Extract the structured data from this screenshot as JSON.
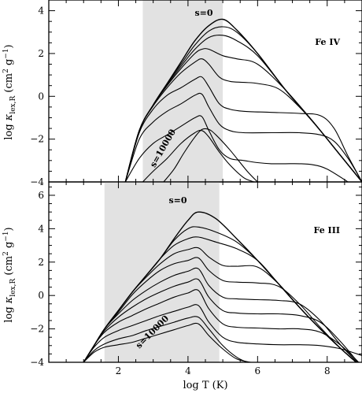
{
  "figure": {
    "xlabel": "log T (K)",
    "shade_color": "#e2e2e2",
    "line_color": "#000000"
  },
  "chart_data": [
    {
      "type": "line",
      "panel_label": "Fe IV",
      "ylabel": "log κ_lex,R (cm² g⁻¹)",
      "xlabel": "",
      "xlim": [
        0,
        9
      ],
      "ylim": [
        -4,
        4.5
      ],
      "x_ticks": [
        2,
        4,
        6,
        8
      ],
      "y_ticks": [
        -4,
        -2,
        0,
        2,
        4
      ],
      "y_tick_labels": [
        "−4",
        "−2",
        "0",
        "2",
        "4"
      ],
      "x_tick_labels_shown": false,
      "shaded_x_range": [
        2.7,
        5.0
      ],
      "curve_labels": {
        "top": "s=0",
        "bottom": "s=10000"
      },
      "series": [
        {
          "x": [
            2.2,
            2.6,
            3.0,
            3.4,
            3.8,
            4.2,
            4.6,
            5.0,
            5.4,
            6.0,
            6.8,
            7.6,
            8.4,
            9.0
          ],
          "y": [
            -4.0,
            -1.6,
            -0.4,
            0.6,
            1.6,
            2.6,
            3.3,
            3.6,
            3.1,
            2.0,
            0.3,
            -1.2,
            -2.8,
            -4.0
          ]
        },
        {
          "x": [
            2.2,
            2.6,
            3.0,
            3.4,
            3.8,
            4.2,
            4.6,
            5.0,
            5.4,
            6.0,
            6.8,
            7.6,
            8.4,
            9.0
          ],
          "y": [
            -4.0,
            -1.6,
            -0.4,
            0.6,
            1.5,
            2.4,
            3.05,
            3.25,
            3.0,
            2.0,
            0.3,
            -1.2,
            -2.8,
            -4.0
          ]
        },
        {
          "x": [
            2.2,
            2.6,
            3.0,
            3.4,
            3.8,
            4.2,
            4.6,
            5.0,
            5.4,
            6.0,
            6.8,
            7.6,
            8.4,
            9.0
          ],
          "y": [
            -4.0,
            -1.6,
            -0.4,
            0.55,
            1.4,
            2.2,
            2.75,
            2.85,
            2.6,
            1.9,
            0.3,
            -1.2,
            -2.8,
            -4.0
          ]
        },
        {
          "x": [
            2.2,
            2.6,
            3.0,
            3.4,
            3.8,
            4.2,
            4.4,
            4.6,
            5.0,
            5.4,
            6.0,
            6.8,
            7.6,
            8.4,
            9.0
          ],
          "y": [
            -4.0,
            -1.6,
            -0.4,
            0.5,
            1.3,
            2.0,
            2.2,
            2.2,
            1.9,
            1.75,
            1.5,
            0.3,
            -1.2,
            -2.8,
            -4.0
          ]
        },
        {
          "x": [
            2.2,
            2.6,
            3.0,
            3.4,
            3.8,
            4.2,
            4.4,
            4.6,
            4.9,
            5.2,
            5.6,
            6.0,
            6.6,
            7.2,
            7.8,
            8.4,
            9.0
          ],
          "y": [
            -4.0,
            -1.6,
            -0.45,
            0.4,
            1.1,
            1.6,
            1.75,
            1.5,
            0.9,
            0.7,
            0.65,
            0.6,
            0.35,
            -0.5,
            -1.6,
            -2.8,
            -4.0
          ]
        },
        {
          "x": [
            2.2,
            2.6,
            3.0,
            3.4,
            3.8,
            4.2,
            4.4,
            4.6,
            4.9,
            5.2,
            5.6,
            6.4,
            7.2,
            7.8,
            8.2,
            8.6,
            9.0
          ],
          "y": [
            -4.0,
            -1.7,
            -0.6,
            0.05,
            0.4,
            0.8,
            0.9,
            0.45,
            -0.35,
            -0.6,
            -0.7,
            -0.75,
            -0.8,
            -0.9,
            -1.5,
            -2.8,
            -4.0
          ]
        },
        {
          "x": [
            2.2,
            2.6,
            3.0,
            3.4,
            3.8,
            4.2,
            4.4,
            4.6,
            4.9,
            5.2,
            5.6,
            6.4,
            7.2,
            7.8,
            8.2,
            8.6,
            9.0
          ],
          "y": [
            -4.0,
            -2.0,
            -1.2,
            -0.7,
            -0.35,
            0.05,
            0.1,
            -0.5,
            -1.3,
            -1.6,
            -1.7,
            -1.7,
            -1.7,
            -1.8,
            -2.1,
            -2.9,
            -4.0
          ]
        },
        {
          "x": [
            2.2,
            2.6,
            3.0,
            3.4,
            3.8,
            4.2,
            4.4,
            4.6,
            4.9,
            5.2,
            5.6,
            6.0,
            6.4,
            6.8,
            7.2,
            7.6,
            8.0,
            8.6
          ],
          "y": [
            -4.0,
            -2.9,
            -2.2,
            -1.8,
            -1.4,
            -1.0,
            -0.95,
            -1.6,
            -2.5,
            -2.9,
            -3.0,
            -3.1,
            -3.15,
            -3.15,
            -3.15,
            -3.2,
            -3.4,
            -4.0
          ]
        },
        {
          "x": [
            2.7,
            3.0,
            3.4,
            3.8,
            4.2,
            4.4,
            4.6,
            4.9,
            5.2,
            5.6,
            5.9
          ],
          "y": [
            -4.0,
            -3.5,
            -2.9,
            -2.2,
            -1.7,
            -1.6,
            -1.9,
            -2.6,
            -3.2,
            -3.8,
            -4.0
          ]
        },
        {
          "x": [
            3.3,
            3.6,
            3.9,
            4.2,
            4.4,
            4.6,
            4.8,
            5.2,
            5.7,
            6.0
          ],
          "y": [
            -4.0,
            -3.4,
            -2.6,
            -1.9,
            -1.55,
            -1.55,
            -1.8,
            -2.5,
            -3.5,
            -4.0
          ]
        }
      ]
    },
    {
      "type": "line",
      "panel_label": "Fe III",
      "ylabel": "log κ_lex,R (cm² g⁻¹)",
      "xlabel": "log T (K)",
      "xlim": [
        0,
        9
      ],
      "ylim": [
        -4,
        6.8
      ],
      "x_ticks": [
        2,
        4,
        6,
        8
      ],
      "y_ticks": [
        -4,
        -2,
        0,
        2,
        4,
        6
      ],
      "y_tick_labels": [
        "−4",
        "−2",
        "0",
        "2",
        "4",
        "6"
      ],
      "x_tick_labels_shown": true,
      "shaded_x_range": [
        1.6,
        4.9
      ],
      "curve_labels": {
        "top": "s=0",
        "bottom": "s=10000"
      },
      "series": [
        {
          "x": [
            1.0,
            1.3,
            1.6,
            2.0,
            2.4,
            2.8,
            3.2,
            3.6,
            4.0,
            4.3,
            4.8,
            5.4,
            6.0,
            6.6,
            7.2,
            7.8,
            8.4,
            9.0
          ],
          "y": [
            -4.0,
            -3.0,
            -2.0,
            -0.9,
            0.2,
            1.2,
            2.2,
            3.4,
            4.5,
            5.0,
            4.6,
            3.4,
            2.1,
            0.7,
            -0.7,
            -2.0,
            -3.2,
            -4.3
          ]
        },
        {
          "x": [
            1.0,
            1.3,
            1.6,
            2.0,
            2.4,
            2.8,
            3.2,
            3.6,
            4.0,
            4.3,
            4.8,
            5.4,
            6.0,
            6.6,
            7.2,
            7.8,
            8.4,
            9.0
          ],
          "y": [
            -4.0,
            -3.0,
            -2.0,
            -0.9,
            0.2,
            1.2,
            2.2,
            3.3,
            4.0,
            4.1,
            3.8,
            3.2,
            2.1,
            0.7,
            -0.7,
            -2.0,
            -3.2,
            -4.3
          ]
        },
        {
          "x": [
            1.0,
            1.3,
            1.6,
            2.0,
            2.4,
            2.8,
            3.2,
            3.6,
            4.0,
            4.3,
            4.8,
            5.4,
            6.0,
            6.6,
            7.2,
            7.8,
            8.4,
            9.0
          ],
          "y": [
            -4.0,
            -3.0,
            -2.0,
            -0.9,
            0.2,
            1.2,
            2.2,
            3.0,
            3.4,
            3.5,
            3.2,
            2.8,
            2.1,
            0.7,
            -0.7,
            -2.0,
            -3.2,
            -4.3
          ]
        },
        {
          "x": [
            1.0,
            1.3,
            1.6,
            2.0,
            2.4,
            2.8,
            3.2,
            3.6,
            4.0,
            4.3,
            4.6,
            5.0,
            5.4,
            6.0,
            6.6,
            7.2,
            7.8,
            8.4,
            9.0
          ],
          "y": [
            -4.0,
            -3.0,
            -2.0,
            -0.9,
            0.2,
            1.1,
            1.9,
            2.5,
            2.75,
            2.85,
            2.3,
            1.8,
            1.75,
            1.7,
            0.7,
            -0.7,
            -2.0,
            -3.2,
            -4.3
          ]
        },
        {
          "x": [
            1.0,
            1.3,
            1.6,
            2.0,
            2.4,
            2.8,
            3.2,
            3.6,
            4.0,
            4.3,
            4.6,
            5.0,
            5.4,
            6.0,
            6.6,
            7.2,
            7.8,
            8.4,
            9.0
          ],
          "y": [
            -4.0,
            -3.0,
            -2.0,
            -1.0,
            0.05,
            0.85,
            1.5,
            1.9,
            2.1,
            2.25,
            1.5,
            0.9,
            0.8,
            0.75,
            0.55,
            -0.5,
            -1.9,
            -3.2,
            -4.3
          ]
        },
        {
          "x": [
            1.0,
            1.3,
            1.6,
            2.0,
            2.4,
            2.8,
            3.2,
            3.6,
            4.0,
            4.3,
            4.6,
            5.0,
            5.4,
            6.0,
            6.6,
            7.2,
            7.8,
            8.4,
            9.0
          ],
          "y": [
            -4.0,
            -3.0,
            -2.0,
            -1.1,
            -0.3,
            0.3,
            0.8,
            1.2,
            1.45,
            1.6,
            0.6,
            -0.1,
            -0.2,
            -0.25,
            -0.3,
            -0.5,
            -1.5,
            -3.0,
            -4.3
          ]
        },
        {
          "x": [
            1.0,
            1.3,
            1.6,
            2.0,
            2.4,
            2.8,
            3.2,
            3.6,
            4.0,
            4.3,
            4.6,
            5.0,
            5.4,
            6.0,
            6.6,
            7.2,
            7.8,
            8.4,
            9.0
          ],
          "y": [
            -4.0,
            -3.0,
            -2.1,
            -1.3,
            -0.7,
            -0.2,
            0.2,
            0.55,
            0.8,
            0.95,
            -0.1,
            -0.9,
            -1.05,
            -1.1,
            -1.1,
            -1.2,
            -1.6,
            -2.8,
            -4.3
          ]
        },
        {
          "x": [
            1.0,
            1.3,
            1.6,
            2.0,
            2.4,
            2.8,
            3.2,
            3.6,
            4.0,
            4.3,
            4.6,
            5.0,
            5.4,
            6.0,
            6.6,
            7.2,
            7.8,
            8.4,
            9.0
          ],
          "y": [
            -4.0,
            -3.0,
            -2.2,
            -1.6,
            -1.2,
            -0.8,
            -0.45,
            -0.1,
            0.15,
            0.3,
            -0.8,
            -1.7,
            -1.9,
            -1.95,
            -2.0,
            -2.0,
            -2.2,
            -3.0,
            -4.2
          ]
        },
        {
          "x": [
            1.0,
            1.3,
            1.6,
            2.0,
            2.4,
            2.8,
            3.2,
            3.6,
            4.0,
            4.3,
            4.6,
            5.0,
            5.4,
            6.0,
            6.6,
            7.2,
            7.8,
            8.4,
            9.0
          ],
          "y": [
            -4.0,
            -3.1,
            -2.5,
            -2.1,
            -1.8,
            -1.5,
            -1.2,
            -0.95,
            -0.7,
            -0.6,
            -1.6,
            -2.5,
            -2.8,
            -2.9,
            -2.95,
            -2.95,
            -3.0,
            -3.2,
            -3.6
          ]
        },
        {
          "x": [
            1.0,
            1.3,
            1.6,
            2.0,
            2.4,
            2.8,
            3.2,
            3.6,
            4.0,
            4.3,
            4.6,
            5.0,
            5.4,
            5.7
          ],
          "y": [
            -4.0,
            -3.3,
            -2.9,
            -2.6,
            -2.4,
            -2.1,
            -1.85,
            -1.6,
            -1.35,
            -1.3,
            -2.0,
            -3.0,
            -3.7,
            -4.0
          ]
        },
        {
          "x": [
            1.0,
            1.3,
            1.6,
            2.0,
            2.4,
            2.8,
            3.2,
            3.6,
            4.0,
            4.3,
            4.6,
            5.0,
            5.4,
            5.8
          ],
          "y": [
            -4.0,
            -3.4,
            -3.1,
            -2.95,
            -2.8,
            -2.55,
            -2.3,
            -2.05,
            -1.8,
            -1.7,
            -2.4,
            -3.2,
            -3.8,
            -4.0
          ]
        }
      ]
    }
  ]
}
